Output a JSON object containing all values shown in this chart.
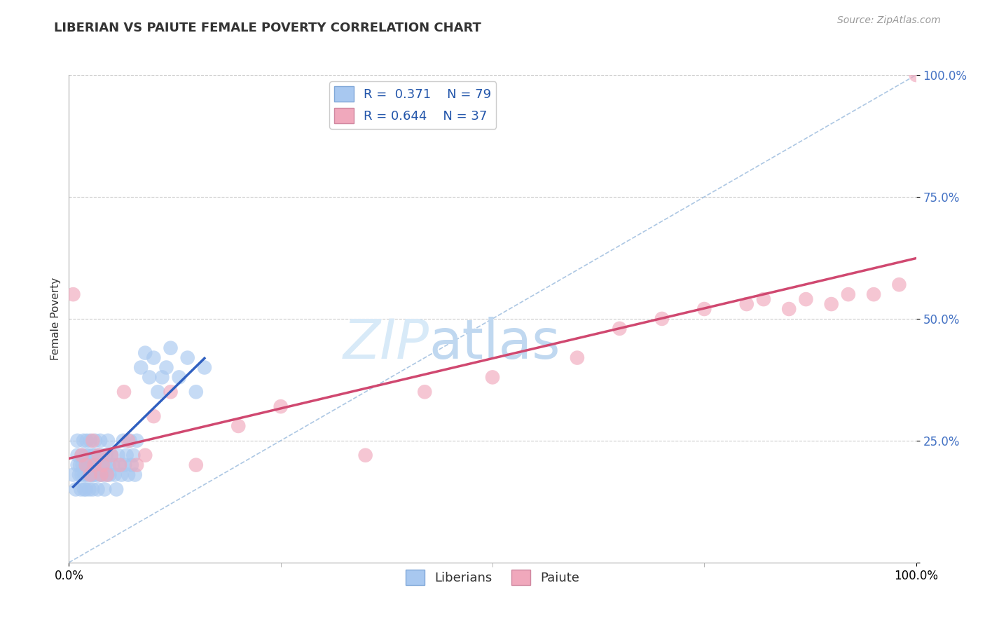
{
  "title": "LIBERIAN VS PAIUTE FEMALE POVERTY CORRELATION CHART",
  "source": "Source: ZipAtlas.com",
  "ylabel": "Female Poverty",
  "xlim": [
    0,
    1
  ],
  "ylim": [
    0,
    1
  ],
  "legend_R_liberian": "R =  0.371",
  "legend_N_liberian": "N = 79",
  "legend_R_paiute": "R = 0.644",
  "legend_N_paiute": "N = 37",
  "color_liberian": "#a8c8f0",
  "color_paiute": "#f0a8bc",
  "color_line_liberian": "#3060c0",
  "color_line_paiute": "#d04870",
  "color_diag": "#8ab0d8",
  "liberian_x": [
    0.005,
    0.008,
    0.01,
    0.01,
    0.01,
    0.012,
    0.013,
    0.014,
    0.015,
    0.015,
    0.016,
    0.017,
    0.018,
    0.018,
    0.02,
    0.02,
    0.02,
    0.02,
    0.021,
    0.022,
    0.023,
    0.023,
    0.024,
    0.025,
    0.025,
    0.026,
    0.027,
    0.028,
    0.028,
    0.029,
    0.03,
    0.03,
    0.03,
    0.031,
    0.032,
    0.033,
    0.034,
    0.035,
    0.036,
    0.037,
    0.038,
    0.039,
    0.04,
    0.041,
    0.042,
    0.043,
    0.044,
    0.045,
    0.046,
    0.047,
    0.048,
    0.05,
    0.052,
    0.054,
    0.056,
    0.058,
    0.06,
    0.062,
    0.064,
    0.066,
    0.068,
    0.07,
    0.072,
    0.074,
    0.076,
    0.078,
    0.08,
    0.085,
    0.09,
    0.095,
    0.1,
    0.105,
    0.11,
    0.115,
    0.12,
    0.13,
    0.14,
    0.15,
    0.16
  ],
  "liberian_y": [
    0.18,
    0.15,
    0.2,
    0.22,
    0.25,
    0.18,
    0.2,
    0.15,
    0.22,
    0.18,
    0.2,
    0.25,
    0.18,
    0.15,
    0.22,
    0.18,
    0.2,
    0.15,
    0.25,
    0.18,
    0.2,
    0.22,
    0.15,
    0.18,
    0.25,
    0.2,
    0.18,
    0.22,
    0.15,
    0.18,
    0.2,
    0.22,
    0.18,
    0.25,
    0.18,
    0.2,
    0.15,
    0.22,
    0.18,
    0.25,
    0.18,
    0.2,
    0.22,
    0.18,
    0.15,
    0.2,
    0.22,
    0.18,
    0.25,
    0.2,
    0.18,
    0.22,
    0.2,
    0.18,
    0.15,
    0.22,
    0.2,
    0.18,
    0.25,
    0.2,
    0.22,
    0.18,
    0.25,
    0.2,
    0.22,
    0.18,
    0.25,
    0.4,
    0.43,
    0.38,
    0.42,
    0.35,
    0.38,
    0.4,
    0.44,
    0.38,
    0.42,
    0.35,
    0.4
  ],
  "paiute_x": [
    0.005,
    0.015,
    0.02,
    0.025,
    0.028,
    0.03,
    0.035,
    0.038,
    0.04,
    0.045,
    0.05,
    0.06,
    0.065,
    0.07,
    0.08,
    0.09,
    0.1,
    0.12,
    0.15,
    0.2,
    0.25,
    0.35,
    0.42,
    0.5,
    0.6,
    0.65,
    0.7,
    0.75,
    0.8,
    0.82,
    0.85,
    0.87,
    0.9,
    0.92,
    0.95,
    0.98,
    1.0
  ],
  "paiute_y": [
    0.55,
    0.22,
    0.2,
    0.18,
    0.25,
    0.2,
    0.22,
    0.18,
    0.2,
    0.18,
    0.22,
    0.2,
    0.35,
    0.25,
    0.2,
    0.22,
    0.3,
    0.35,
    0.2,
    0.28,
    0.32,
    0.22,
    0.35,
    0.38,
    0.42,
    0.48,
    0.5,
    0.52,
    0.53,
    0.54,
    0.52,
    0.54,
    0.53,
    0.55,
    0.55,
    0.57,
    1.0
  ]
}
